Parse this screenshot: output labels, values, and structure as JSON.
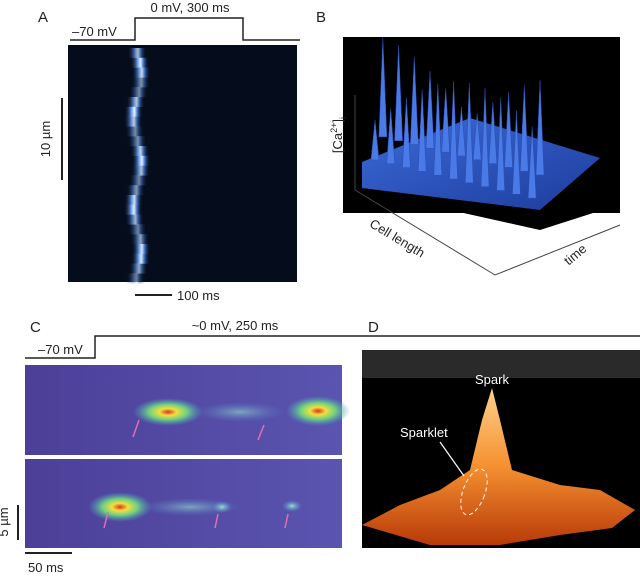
{
  "panel_a": {
    "label": "A",
    "rest_label": "–70 mV",
    "step_label": "0 mV, 300 ms",
    "space_bar": "10 µm",
    "time_bar": "100 ms"
  },
  "panel_b": {
    "label": "B",
    "z_axis": {
      "open": "[Ca",
      "sup": "2+",
      "close": "]",
      "sub": "i"
    },
    "x_axis": "Cell length",
    "y_axis": "time"
  },
  "panel_c": {
    "label": "C",
    "rest_label": "–70 mV",
    "step_label": "~0 mV, 250 ms",
    "space_bar": "5 µm",
    "time_bar": "50 ms"
  },
  "panel_d": {
    "label": "D",
    "peak_label": "Spark",
    "small_label": "Sparklet"
  }
}
